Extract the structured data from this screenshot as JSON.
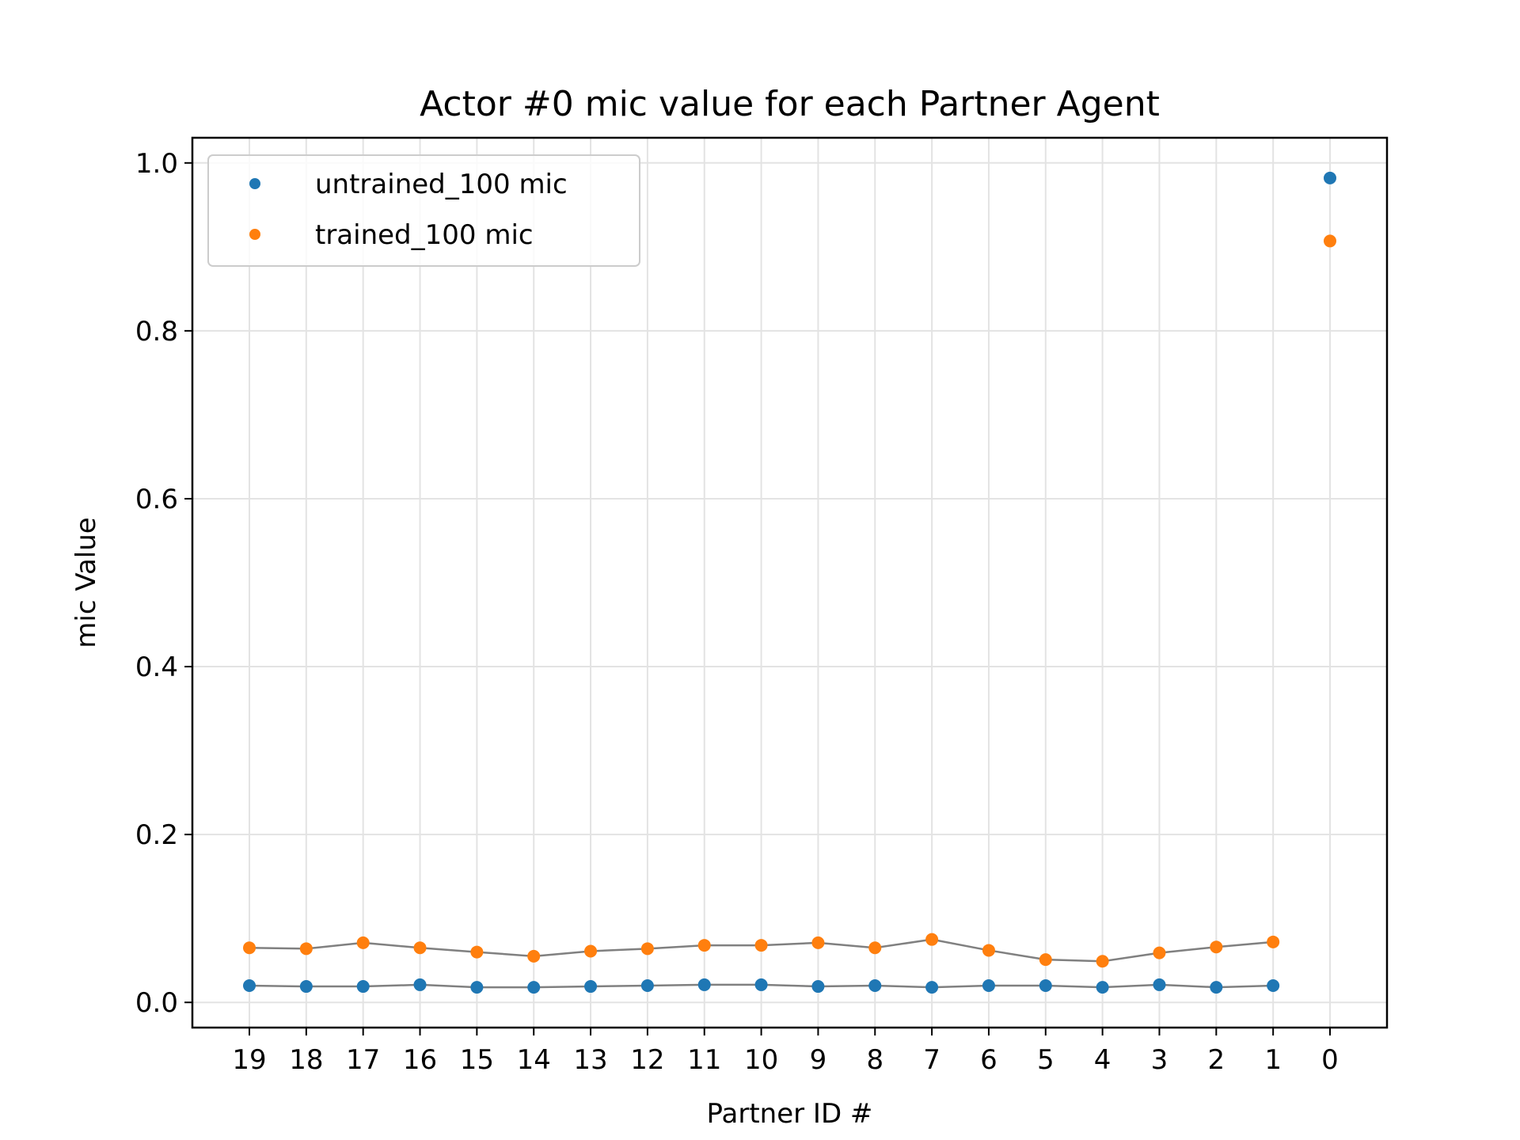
{
  "chart_data": {
    "type": "scatter",
    "title": "Actor #0 mic value for each Partner Agent",
    "xlabel": "Partner ID #",
    "ylabel": "mic Value",
    "categories": [
      "19",
      "18",
      "17",
      "16",
      "15",
      "14",
      "13",
      "12",
      "11",
      "10",
      "9",
      "8",
      "7",
      "6",
      "5",
      "4",
      "3",
      "2",
      "1",
      "0"
    ],
    "ylim": [
      -0.03,
      1.03
    ],
    "yticks": [
      "0.0",
      "0.2",
      "0.4",
      "0.6",
      "0.8",
      "1.0"
    ],
    "grid": true,
    "legend_position": "upper-left",
    "series": [
      {
        "name": "untrained_100 mic",
        "color": "#1f77b4",
        "values": [
          0.02,
          0.019,
          0.019,
          0.021,
          0.018,
          0.018,
          0.019,
          0.02,
          0.021,
          0.021,
          0.019,
          0.02,
          0.018,
          0.02,
          0.02,
          0.018,
          0.021,
          0.018,
          0.02,
          0.982
        ]
      },
      {
        "name": "trained_100 mic",
        "color": "#ff7f0e",
        "values": [
          0.065,
          0.064,
          0.071,
          0.065,
          0.06,
          0.055,
          0.061,
          0.064,
          0.068,
          0.068,
          0.071,
          0.065,
          0.075,
          0.062,
          0.051,
          0.049,
          0.059,
          0.066,
          0.072,
          0.907
        ]
      }
    ],
    "connector_color": "#808080"
  }
}
